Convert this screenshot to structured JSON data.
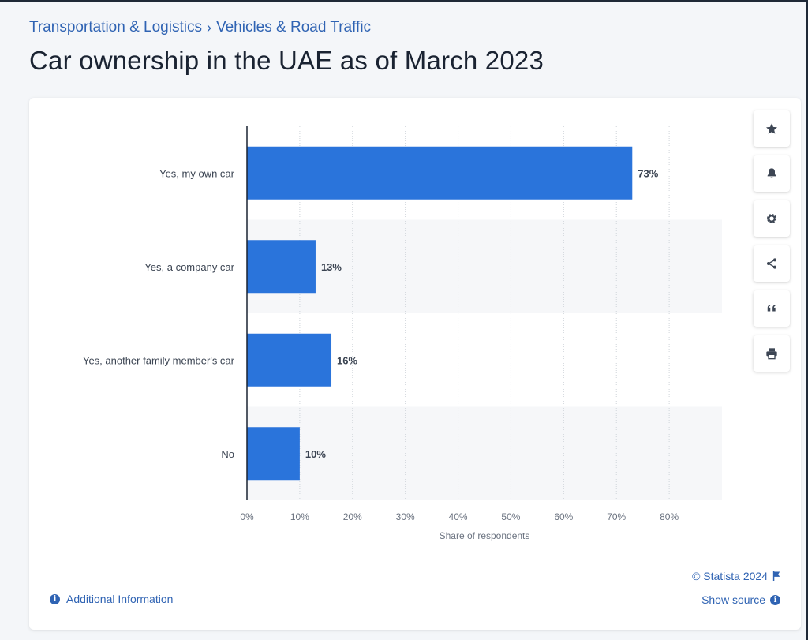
{
  "breadcrumb": {
    "items": [
      "Transportation & Logistics",
      "Vehicles & Road Traffic"
    ],
    "separator": "›"
  },
  "title": "Car ownership in the UAE as of March 2023",
  "toolbar": {
    "icons": [
      "star-icon",
      "bell-icon",
      "gear-icon",
      "share-icon",
      "quote-icon",
      "print-icon"
    ]
  },
  "footer": {
    "copyright": "© Statista 2024",
    "show_source": "Show source",
    "additional_info": "Additional Information"
  },
  "colors": {
    "bar": "#2a74db",
    "link": "#2f63b3",
    "title": "#1a2332"
  },
  "chart_data": {
    "type": "bar",
    "orientation": "horizontal",
    "categories": [
      "Yes, my own car",
      "Yes, a company car",
      "Yes, another family member's car",
      "No"
    ],
    "values": [
      73,
      13,
      16,
      10
    ],
    "value_labels": [
      "73%",
      "13%",
      "16%",
      "10%"
    ],
    "xlabel": "Share of respondents",
    "ylabel": "",
    "xlim": [
      0,
      90
    ],
    "xticks": [
      0,
      10,
      20,
      30,
      40,
      50,
      60,
      70,
      80
    ],
    "xtick_labels": [
      "0%",
      "10%",
      "20%",
      "30%",
      "40%",
      "50%",
      "60%",
      "70%",
      "80%"
    ],
    "grid": true
  }
}
